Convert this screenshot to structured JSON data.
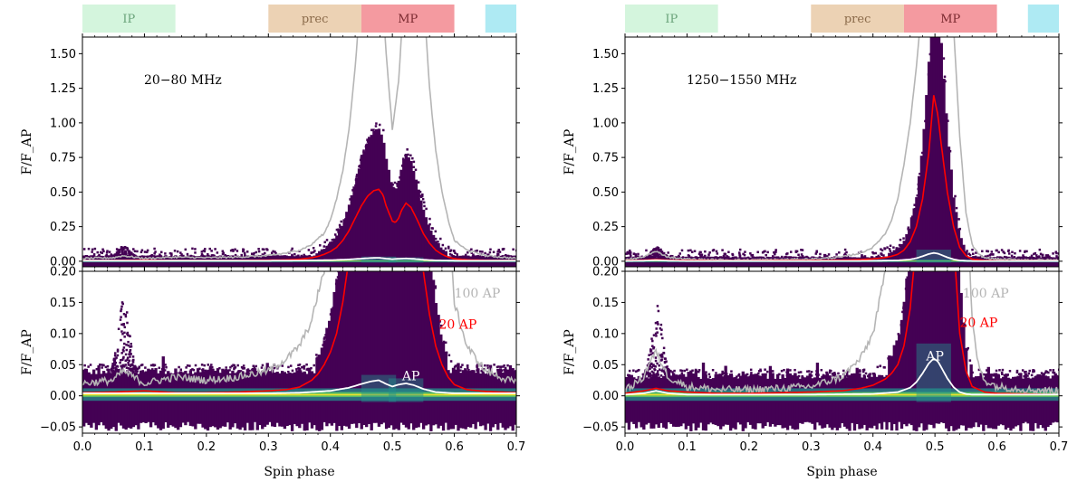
{
  "figure": {
    "regions": [
      {
        "label": "IP",
        "x0": 0.0,
        "x1": 0.15,
        "color": "#d4f5dd",
        "text_color": "#6aa37a"
      },
      {
        "label": "prec",
        "x0": 0.3,
        "x1": 0.45,
        "color": "#ecd2b4",
        "text_color": "#8a6a4a"
      },
      {
        "label": "MP",
        "x0": 0.45,
        "x1": 0.6,
        "color": "#f49aa0",
        "text_color": "#7a2a30"
      },
      {
        "label": "",
        "x0": 0.65,
        "x1": 0.7,
        "color": "#aeeaf3",
        "text_color": "#000000"
      }
    ],
    "colors": {
      "hist_dark": "#440154",
      "hist_mid": "#21918c",
      "hist_bright": "#fde725",
      "curve_ap": "#ffffff",
      "curve_20ap": "#ff0000",
      "curve_100ap": "#b5b5b5"
    }
  },
  "chart_data": [
    {
      "type": "heatmap",
      "frequency_label": "20−80 MHz",
      "xlabel": "Spin phase",
      "ylabel": "F/F_AP",
      "xlim": [
        0.0,
        0.7
      ],
      "xticks": [
        "0.0",
        "0.1",
        "0.2",
        "0.3",
        "0.4",
        "0.5",
        "0.6",
        "0.7"
      ],
      "top_panel": {
        "ylim": [
          -0.04,
          1.62
        ],
        "yticks": [
          "0.00",
          "0.25",
          "0.50",
          "0.75",
          "1.00",
          "1.25",
          "1.50"
        ]
      },
      "bottom_panel": {
        "ylim": [
          -0.06,
          0.2
        ],
        "yticks": [
          "−0.05",
          "0.00",
          "0.05",
          "0.10",
          "0.15",
          "0.20"
        ]
      },
      "labels": {
        "ap100": "100 AP",
        "ap20": "20 AP",
        "ap": "AP"
      },
      "label_pos": {
        "ap100": [
          0.6,
          0.165
        ],
        "ap20": [
          0.575,
          0.115
        ],
        "ap": [
          0.53,
          0.032
        ]
      },
      "hist_top": 0.04,
      "hist_bottom": -0.012,
      "peaks": [
        {
          "c": 0.478,
          "w": 0.014,
          "h": 0.024
        },
        {
          "c": 0.522,
          "w": 0.014,
          "h": 0.02
        }
      ],
      "ip_bump": {
        "c": 0.065,
        "w": 0.006,
        "h": 0.003
      },
      "series": [
        {
          "name": "AP",
          "x": [
            0.0,
            0.1,
            0.2,
            0.3,
            0.35,
            0.4,
            0.43,
            0.45,
            0.465,
            0.478,
            0.49,
            0.5,
            0.51,
            0.522,
            0.535,
            0.55,
            0.57,
            0.6,
            0.65,
            0.7
          ],
          "y": [
            0.004,
            0.004,
            0.004,
            0.004,
            0.005,
            0.008,
            0.013,
            0.019,
            0.023,
            0.025,
            0.019,
            0.015,
            0.018,
            0.02,
            0.017,
            0.011,
            0.006,
            0.004,
            0.004,
            0.004
          ]
        },
        {
          "name": "20 AP",
          "x": [
            0.0,
            0.05,
            0.1,
            0.15,
            0.2,
            0.25,
            0.3,
            0.33,
            0.35,
            0.37,
            0.38,
            0.39,
            0.4,
            0.41,
            0.42,
            0.43,
            0.44,
            0.45,
            0.46,
            0.47,
            0.478,
            0.485,
            0.49,
            0.5,
            0.505,
            0.51,
            0.515,
            0.522,
            0.53,
            0.54,
            0.55,
            0.56,
            0.57,
            0.58,
            0.59,
            0.6,
            0.62,
            0.65,
            0.7
          ],
          "y": [
            0.005,
            0.006,
            0.008,
            0.005,
            0.005,
            0.006,
            0.008,
            0.01,
            0.014,
            0.025,
            0.035,
            0.05,
            0.07,
            0.1,
            0.15,
            0.22,
            0.31,
            0.4,
            0.47,
            0.51,
            0.52,
            0.48,
            0.4,
            0.29,
            0.28,
            0.31,
            0.37,
            0.42,
            0.39,
            0.3,
            0.2,
            0.13,
            0.08,
            0.05,
            0.03,
            0.018,
            0.01,
            0.007,
            0.005
          ]
        },
        {
          "name": "100 AP",
          "x": [
            0.0,
            0.05,
            0.065,
            0.1,
            0.15,
            0.2,
            0.25,
            0.3,
            0.33,
            0.35,
            0.37,
            0.38,
            0.39,
            0.4,
            0.41,
            0.42,
            0.43,
            0.44,
            0.45,
            0.46,
            0.47,
            0.48,
            0.49,
            0.5,
            0.51,
            0.52,
            0.53,
            0.54,
            0.55,
            0.56,
            0.57,
            0.58,
            0.59,
            0.6,
            0.62,
            0.65,
            0.7
          ],
          "y": [
            0.02,
            0.025,
            0.04,
            0.02,
            0.03,
            0.025,
            0.03,
            0.04,
            0.06,
            0.08,
            0.12,
            0.165,
            0.2,
            0.3,
            0.45,
            0.65,
            0.95,
            1.4,
            2.0,
            2.4,
            2.6,
            2.2,
            1.5,
            0.95,
            1.3,
            2.0,
            2.6,
            2.5,
            1.95,
            1.25,
            0.8,
            0.5,
            0.3,
            0.15,
            0.08,
            0.04,
            0.02
          ]
        }
      ]
    },
    {
      "type": "heatmap",
      "frequency_label": "1250−1550 MHz",
      "xlabel": "Spin phase",
      "ylabel": "F/F_AP",
      "xlim": [
        0.0,
        0.7
      ],
      "xticks": [
        "0.0",
        "0.1",
        "0.2",
        "0.3",
        "0.4",
        "0.5",
        "0.6",
        "0.7"
      ],
      "top_panel": {
        "ylim": [
          -0.04,
          1.62
        ],
        "yticks": [
          "0.00",
          "0.25",
          "0.50",
          "0.75",
          "1.00",
          "1.25",
          "1.50"
        ]
      },
      "bottom_panel": {
        "ylim": [
          -0.06,
          0.2
        ],
        "yticks": [
          "−0.05",
          "0.00",
          "0.05",
          "0.10",
          "0.15",
          "0.20"
        ]
      },
      "labels": {
        "ap100": "100 AP",
        "ap20": "20 AP",
        "ap": "AP"
      },
      "label_pos": {
        "ap100": [
          0.545,
          0.165
        ],
        "ap20": [
          0.54,
          0.118
        ],
        "ap": [
          0.5,
          0.064
        ]
      },
      "hist_top": 0.032,
      "hist_bottom": -0.012,
      "peaks": [
        {
          "c": 0.498,
          "w": 0.014,
          "h": 0.06
        }
      ],
      "ip_bump": {
        "c": 0.05,
        "w": 0.006,
        "h": 0.004
      },
      "series": [
        {
          "name": "AP",
          "x": [
            0.0,
            0.03,
            0.05,
            0.07,
            0.1,
            0.2,
            0.3,
            0.4,
            0.44,
            0.46,
            0.47,
            0.48,
            0.49,
            0.498,
            0.505,
            0.51,
            0.52,
            0.53,
            0.54,
            0.55,
            0.56,
            0.6,
            0.7
          ],
          "y": [
            0.002,
            0.004,
            0.008,
            0.004,
            0.002,
            0.002,
            0.002,
            0.003,
            0.006,
            0.013,
            0.022,
            0.036,
            0.052,
            0.06,
            0.055,
            0.046,
            0.028,
            0.014,
            0.006,
            0.003,
            0.002,
            0.002,
            0.002
          ]
        },
        {
          "name": "20 AP",
          "x": [
            0.0,
            0.03,
            0.05,
            0.07,
            0.1,
            0.15,
            0.2,
            0.25,
            0.3,
            0.35,
            0.38,
            0.4,
            0.42,
            0.43,
            0.44,
            0.45,
            0.46,
            0.47,
            0.48,
            0.49,
            0.498,
            0.505,
            0.51,
            0.52,
            0.53,
            0.54,
            0.55,
            0.56,
            0.58,
            0.6,
            0.65,
            0.7
          ],
          "y": [
            0.004,
            0.008,
            0.012,
            0.008,
            0.006,
            0.004,
            0.004,
            0.005,
            0.006,
            0.008,
            0.012,
            0.017,
            0.027,
            0.036,
            0.05,
            0.08,
            0.14,
            0.25,
            0.45,
            0.78,
            1.2,
            1.05,
            0.85,
            0.5,
            0.25,
            0.1,
            0.04,
            0.015,
            0.006,
            0.004,
            0.003,
            0.002
          ]
        },
        {
          "name": "100 AP",
          "x": [
            0.0,
            0.03,
            0.04,
            0.05,
            0.06,
            0.07,
            0.1,
            0.15,
            0.2,
            0.25,
            0.3,
            0.35,
            0.38,
            0.4,
            0.42,
            0.43,
            0.44,
            0.45,
            0.46,
            0.47,
            0.48,
            0.49,
            0.5,
            0.51,
            0.52,
            0.53,
            0.54,
            0.55,
            0.56,
            0.57,
            0.58,
            0.6,
            0.65,
            0.7
          ],
          "y": [
            0.008,
            0.03,
            0.055,
            0.07,
            0.05,
            0.03,
            0.015,
            0.01,
            0.01,
            0.012,
            0.015,
            0.03,
            0.06,
            0.1,
            0.2,
            0.3,
            0.45,
            0.7,
            1.0,
            1.4,
            1.9,
            2.4,
            3.0,
            3.0,
            2.4,
            1.7,
            0.9,
            0.35,
            0.12,
            0.05,
            0.025,
            0.015,
            0.01,
            0.008
          ]
        }
      ]
    }
  ]
}
